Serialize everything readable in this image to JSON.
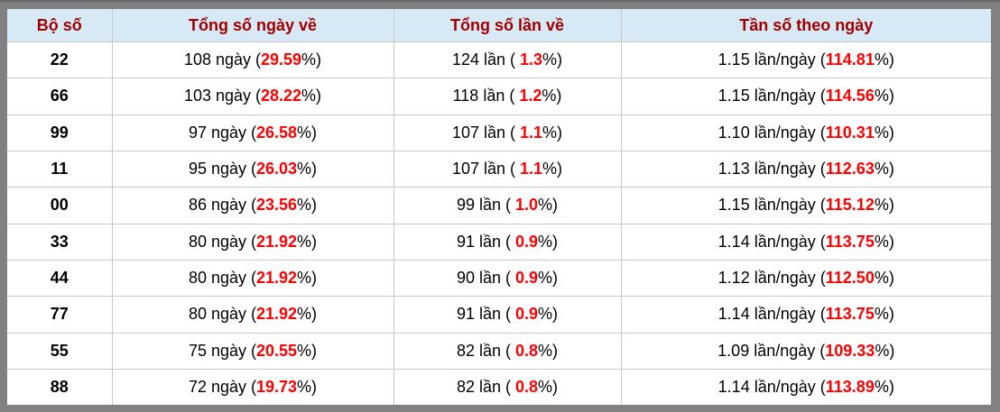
{
  "colors": {
    "frame_border": "#818181",
    "header_background": "#d6e9f5",
    "header_text": "#a00000",
    "highlight_percent": "#ff0000",
    "cell_border": "#c8c8c8",
    "row_background": "#ffffff",
    "body_text": "#000000"
  },
  "chart_data": {
    "type": "table",
    "columns": [
      "Bộ số",
      "Tổng số ngày về",
      "Tổng số lần về",
      "Tần số theo ngày"
    ],
    "unit_labels": {
      "days": "ngày",
      "times": "lần",
      "freq": "lần/ngày"
    },
    "rows": [
      {
        "pair": "22",
        "days": "108",
        "days_pct": "29.59",
        "times": "124",
        "times_pct": "1.3",
        "freq": "1.15",
        "freq_pct": "114.81"
      },
      {
        "pair": "66",
        "days": "103",
        "days_pct": "28.22",
        "times": "118",
        "times_pct": "1.2",
        "freq": "1.15",
        "freq_pct": "114.56"
      },
      {
        "pair": "99",
        "days": "97",
        "days_pct": "26.58",
        "times": "107",
        "times_pct": "1.1",
        "freq": "1.10",
        "freq_pct": "110.31"
      },
      {
        "pair": "11",
        "days": "95",
        "days_pct": "26.03",
        "times": "107",
        "times_pct": "1.1",
        "freq": "1.13",
        "freq_pct": "112.63"
      },
      {
        "pair": "00",
        "days": "86",
        "days_pct": "23.56",
        "times": "99",
        "times_pct": "1.0",
        "freq": "1.15",
        "freq_pct": "115.12"
      },
      {
        "pair": "33",
        "days": "80",
        "days_pct": "21.92",
        "times": "91",
        "times_pct": "0.9",
        "freq": "1.14",
        "freq_pct": "113.75"
      },
      {
        "pair": "44",
        "days": "80",
        "days_pct": "21.92",
        "times": "90",
        "times_pct": "0.9",
        "freq": "1.12",
        "freq_pct": "112.50"
      },
      {
        "pair": "77",
        "days": "80",
        "days_pct": "21.92",
        "times": "91",
        "times_pct": "0.9",
        "freq": "1.14",
        "freq_pct": "113.75"
      },
      {
        "pair": "55",
        "days": "75",
        "days_pct": "20.55",
        "times": "82",
        "times_pct": "0.8",
        "freq": "1.09",
        "freq_pct": "109.33"
      },
      {
        "pair": "88",
        "days": "72",
        "days_pct": "19.73",
        "times": "82",
        "times_pct": "0.8",
        "freq": "1.14",
        "freq_pct": "113.89"
      }
    ]
  }
}
